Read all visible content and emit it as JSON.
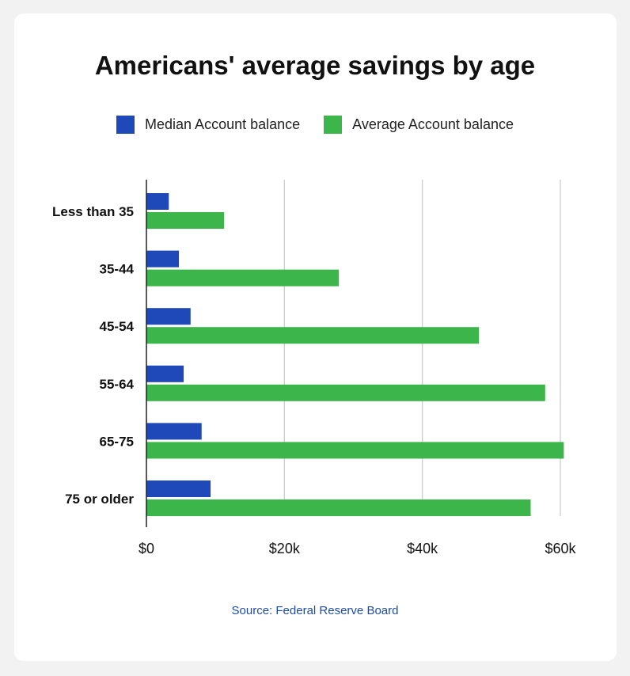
{
  "chart_data": {
    "type": "bar",
    "orientation": "horizontal",
    "title": "Americans' average savings by age",
    "categories": [
      "Less than 35",
      "35-44",
      "45-54",
      "55-64",
      "65-75",
      "75 or older"
    ],
    "series": [
      {
        "name": "Median Account balance",
        "color": "#1f48b8",
        "values": [
          3240,
          4710,
          6400,
          5400,
          8000,
          9300
        ]
      },
      {
        "name": "Average Account balance",
        "color": "#3cb54a",
        "values": [
          11250,
          27900,
          48200,
          57800,
          60500,
          55700
        ]
      }
    ],
    "xlim": [
      0,
      60000
    ],
    "xticks": [
      {
        "value": 0,
        "label": "$0"
      },
      {
        "value": 20000,
        "label": "$20k"
      },
      {
        "value": 40000,
        "label": "$40k"
      },
      {
        "value": 60000,
        "label": "$60k"
      }
    ],
    "grid": true,
    "legend_position": "top-center"
  },
  "source": "Source: Federal Reserve Board"
}
